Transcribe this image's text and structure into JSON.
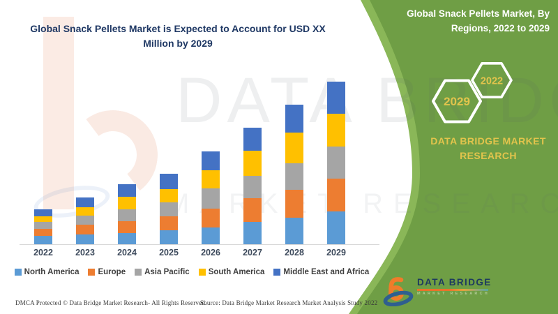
{
  "header": {
    "title": "Global Snack Pellets Market is Expected to Account for USD XX Million by 2029",
    "side_title": "Global Snack Pellets Market, By Regions, 2022 to 2029"
  },
  "side_panel": {
    "hexagons": [
      {
        "year": "2029"
      },
      {
        "year": "2022"
      }
    ],
    "brand": "DATA BRIDGE MARKET RESEARCH",
    "panel_green": "#6f9e45",
    "panel_green_light": "#8ab758",
    "accent_yellow": "#e2c44c"
  },
  "chart_data": {
    "type": "bar",
    "stacked": true,
    "title": "Global Snack Pellets Market is Expected to Account for USD XX Million by 2029",
    "categories": [
      "2022",
      "2023",
      "2024",
      "2025",
      "2026",
      "2027",
      "2028",
      "2029"
    ],
    "series": [
      {
        "name": "North America",
        "color": "#5b9bd5",
        "values": [
          12,
          14,
          16,
          20,
          24,
          32,
          38,
          47
        ]
      },
      {
        "name": "Europe",
        "color": "#ed7d31",
        "values": [
          10,
          14,
          17,
          20,
          27,
          34,
          40,
          47
        ]
      },
      {
        "name": "Asia Pacific",
        "color": "#a5a5a5",
        "values": [
          10,
          13,
          17,
          20,
          29,
          32,
          38,
          46
        ]
      },
      {
        "name": "South America",
        "color": "#ffc000",
        "values": [
          8,
          12,
          18,
          19,
          26,
          36,
          44,
          47
        ]
      },
      {
        "name": "Middle East and Africa",
        "color": "#4472c4",
        "values": [
          10,
          14,
          18,
          22,
          27,
          33,
          40,
          46
        ]
      }
    ],
    "xlabel": "",
    "ylabel": "",
    "units": "relative index (y-axis unlabeled, values masked as XX)",
    "ylim": [
      0,
      240
    ],
    "grid": false,
    "y_axis_visible": false,
    "legend_position": "bottom"
  },
  "watermark": {
    "line1": "DATA BRIDGE",
    "line2": "MARKET RESEARCH"
  },
  "footer": {
    "dmca": "DMCA Protected © Data Bridge Market Research- All Rights Reserved.",
    "source": "Source: Data Bridge Market Research Market Analysis Study 2022"
  },
  "logo": {
    "name": "DATA BRIDGE",
    "tagline": "MARKET RESEARCH"
  }
}
